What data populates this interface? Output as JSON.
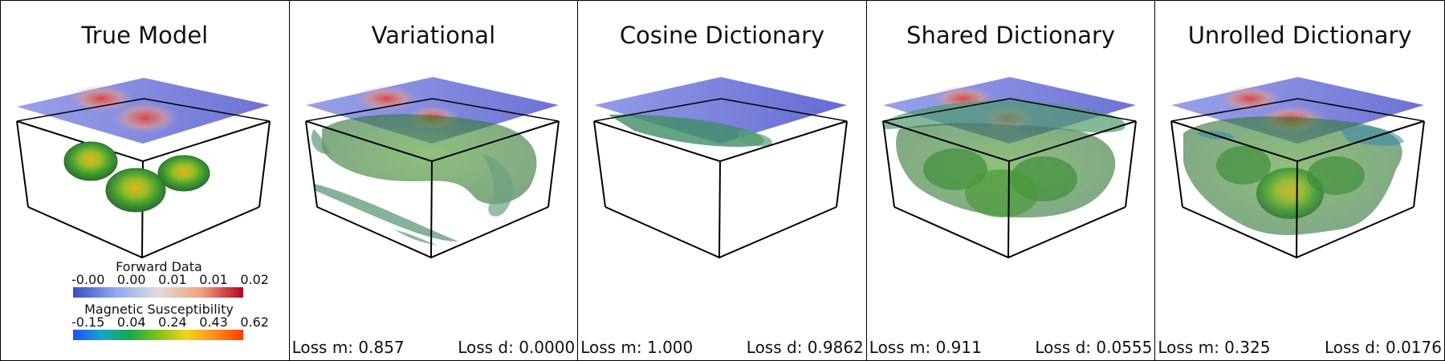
{
  "panels": [
    {
      "title": "True Model",
      "loss_m": "",
      "loss_d": ""
    },
    {
      "title": "Variational",
      "loss_m": "Loss m: 0.857",
      "loss_d": "Loss d: 0.0000"
    },
    {
      "title": "Cosine Dictionary",
      "loss_m": "Loss m: 1.000",
      "loss_d": "Loss d: 0.9862"
    },
    {
      "title": "Shared Dictionary",
      "loss_m": "Loss m: 0.911",
      "loss_d": "Loss d: 0.0555"
    },
    {
      "title": "Unrolled Dictionary",
      "loss_m": "Loss m: 0.325",
      "loss_d": "Loss d: 0.0176"
    }
  ],
  "legends": {
    "forward": {
      "title": "Forward Data",
      "ticks": [
        "-0.00",
        "0.00",
        "0.01",
        "0.01",
        "0.02"
      ]
    },
    "susceptibility": {
      "title": "Magnetic Susceptibility",
      "ticks": [
        "-0.15",
        "0.04",
        "0.24",
        "0.43",
        "0.62"
      ]
    }
  },
  "colors": {
    "plane": "#6b6fd6",
    "iso_green": "#2f8a3c",
    "iso_yellow": "#d9b41a",
    "anomaly_red": "#d94a3a"
  }
}
